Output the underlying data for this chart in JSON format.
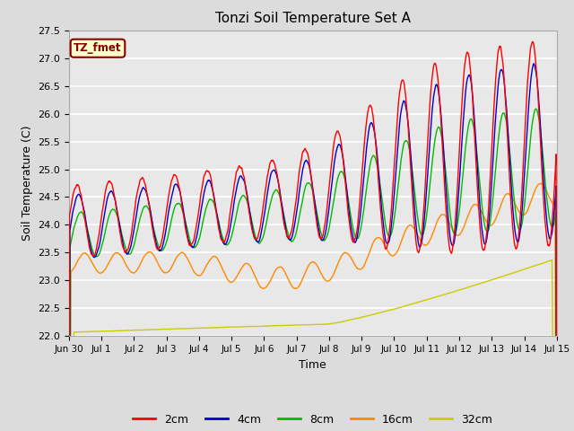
{
  "title": "Tonzi Soil Temperature Set A",
  "xlabel": "Time",
  "ylabel": "Soil Temperature (C)",
  "ylim": [
    22.0,
    27.5
  ],
  "bg_color": "#dcdcdc",
  "plot_bg_color": "#e8e8e8",
  "grid_color": "#ffffff",
  "annotation_text": "TZ_fmet",
  "annotation_bg": "#ffffcc",
  "annotation_border": "#8b0000",
  "line_colors": {
    "2cm": "#ff0000",
    "4cm": "#0000cc",
    "8cm": "#00bb00",
    "16cm": "#ff8800",
    "32cm": "#cccc00"
  },
  "legend_labels": [
    "2cm",
    "4cm",
    "8cm",
    "16cm",
    "32cm"
  ]
}
